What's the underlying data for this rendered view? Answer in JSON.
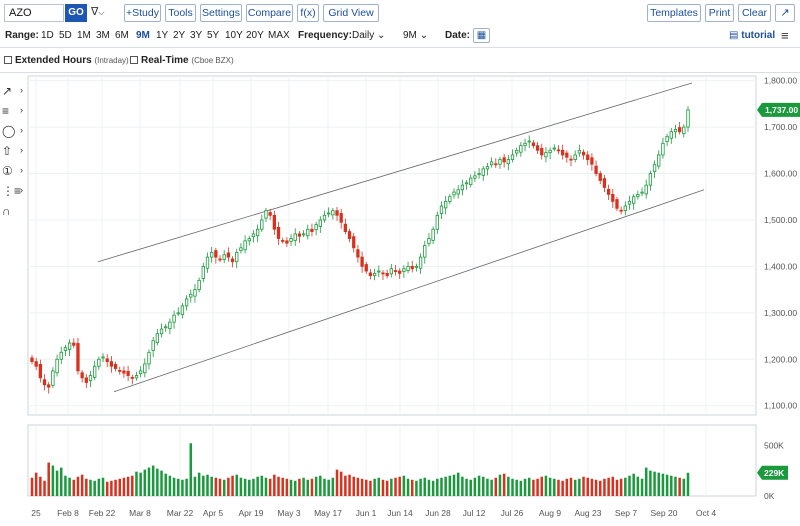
{
  "toolbar": {
    "symbol": "AZO",
    "go_label": "GO",
    "study_label": "+Study",
    "tools_label": "Tools",
    "settings_label": "Settings",
    "compare_label": "Compare",
    "fx_label": "f(x)",
    "gridview_label": "Grid View",
    "templates_label": "Templates",
    "print_label": "Print",
    "clear_label": "Clear"
  },
  "rangebar": {
    "range_label": "Range:",
    "ranges": [
      "1D",
      "5D",
      "1M",
      "3M",
      "6M",
      "9M",
      "1Y",
      "2Y",
      "3Y",
      "5Y",
      "10Y",
      "20Y",
      "MAX"
    ],
    "selected_range": "9M",
    "frequency_label": "Frequency:",
    "frequency_value": "Daily",
    "period_value": "9M",
    "date_label": "Date:",
    "tutorial_label": "tutorial"
  },
  "options": {
    "extended_label": "Extended Hours",
    "extended_sub": "(Intraday)",
    "realtime_label": "Real-Time",
    "realtime_sub": "(Cboe BZX)"
  },
  "tools_icons": [
    "trendline-icon",
    "fibonacci-icon",
    "shapes-icon",
    "arrow-icon",
    "annotation-icon",
    "measure-icon",
    "magnet-icon"
  ],
  "colors": {
    "up": "#1a9a3c",
    "down": "#d8321f",
    "link": "#1b4f9c",
    "price_tag": "#1a9a3c"
  },
  "chart_data": {
    "type": "candlestick",
    "symbol": "AZO",
    "y_ticks": [
      "1,800.00",
      "1,700.00",
      "1,600.00",
      "1,500.00",
      "1,400.00",
      "1,300.00",
      "1,200.00",
      "1,100.00"
    ],
    "y_tick_values": [
      1800,
      1700,
      1600,
      1500,
      1400,
      1300,
      1200,
      1100
    ],
    "ylim": [
      1080,
      1810
    ],
    "x_ticks": [
      "25",
      "Feb 8",
      "Feb 22",
      "Mar 8",
      "Mar 22",
      "Apr 5",
      "Apr 19",
      "May 3",
      "May 17",
      "Jun 1",
      "Jun 14",
      "Jun 28",
      "Jul 12",
      "Jul 26",
      "Aug 9",
      "Aug 23",
      "Sep 7",
      "Sep 20",
      "Oct 4"
    ],
    "last_price": "1,737.00",
    "last_volume": "229K",
    "volume_ticks": [
      "500K",
      "0K"
    ],
    "volume_ylim": [
      0,
      700
    ],
    "channel_upper": [
      [
        0.0,
        1410
      ],
      [
        1.0,
        1795
      ]
    ],
    "channel_lower": [
      [
        0.0,
        1130
      ],
      [
        1.0,
        1565
      ]
    ],
    "close": [
      1195,
      1185,
      1160,
      1145,
      1140,
      1175,
      1200,
      1215,
      1225,
      1235,
      1230,
      1175,
      1160,
      1150,
      1165,
      1185,
      1200,
      1205,
      1195,
      1185,
      1180,
      1175,
      1170,
      1165,
      1160,
      1165,
      1175,
      1190,
      1215,
      1240,
      1255,
      1265,
      1270,
      1280,
      1295,
      1300,
      1315,
      1330,
      1340,
      1350,
      1370,
      1400,
      1420,
      1430,
      1420,
      1415,
      1425,
      1420,
      1410,
      1430,
      1440,
      1455,
      1460,
      1470,
      1480,
      1500,
      1520,
      1510,
      1480,
      1460,
      1455,
      1450,
      1460,
      1470,
      1465,
      1470,
      1480,
      1475,
      1490,
      1500,
      1510,
      1515,
      1520,
      1510,
      1495,
      1475,
      1460,
      1440,
      1420,
      1400,
      1390,
      1380,
      1385,
      1390,
      1385,
      1380,
      1395,
      1390,
      1385,
      1395,
      1400,
      1395,
      1400,
      1420,
      1445,
      1460,
      1480,
      1510,
      1530,
      1540,
      1550,
      1560,
      1565,
      1575,
      1580,
      1590,
      1595,
      1600,
      1610,
      1615,
      1625,
      1620,
      1630,
      1625,
      1630,
      1640,
      1650,
      1660,
      1665,
      1670,
      1660,
      1650,
      1640,
      1645,
      1650,
      1655,
      1650,
      1640,
      1635,
      1630,
      1640,
      1650,
      1640,
      1630,
      1620,
      1600,
      1585,
      1570,
      1555,
      1540,
      1525,
      1520,
      1530,
      1540,
      1550,
      1555,
      1560,
      1575,
      1600,
      1620,
      1640,
      1665,
      1680,
      1690,
      1695,
      1690,
      1700,
      1737
    ],
    "volume": [
      180,
      230,
      190,
      150,
      330,
      300,
      250,
      280,
      200,
      180,
      160,
      190,
      210,
      170,
      160,
      150,
      170,
      180,
      140,
      150,
      160,
      170,
      180,
      190,
      200,
      240,
      230,
      260,
      280,
      300,
      270,
      250,
      220,
      200,
      180,
      170,
      160,
      170,
      520,
      190,
      230,
      200,
      210,
      190,
      180,
      170,
      160,
      180,
      200,
      210,
      180,
      170,
      160,
      170,
      190,
      200,
      180,
      170,
      210,
      190,
      180,
      170,
      160,
      150,
      170,
      180,
      160,
      170,
      190,
      200,
      170,
      160,
      180,
      260,
      240,
      200,
      210,
      190,
      180,
      170,
      160,
      150,
      170,
      180,
      160,
      150,
      170,
      180,
      190,
      200,
      170,
      160,
      150,
      170,
      180,
      160,
      150,
      170,
      180,
      190,
      200,
      210,
      230,
      190,
      170,
      160,
      180,
      200,
      190,
      170,
      160,
      180,
      210,
      220,
      190,
      170,
      160,
      150,
      170,
      180,
      160,
      170,
      190,
      200,
      180,
      170,
      160,
      150,
      170,
      180,
      160,
      170,
      190,
      180,
      170,
      160,
      150,
      170,
      180,
      190,
      160,
      170,
      180,
      200,
      220,
      190,
      170,
      280,
      250,
      240,
      230,
      220,
      210,
      200,
      190,
      180,
      170,
      229
    ]
  }
}
